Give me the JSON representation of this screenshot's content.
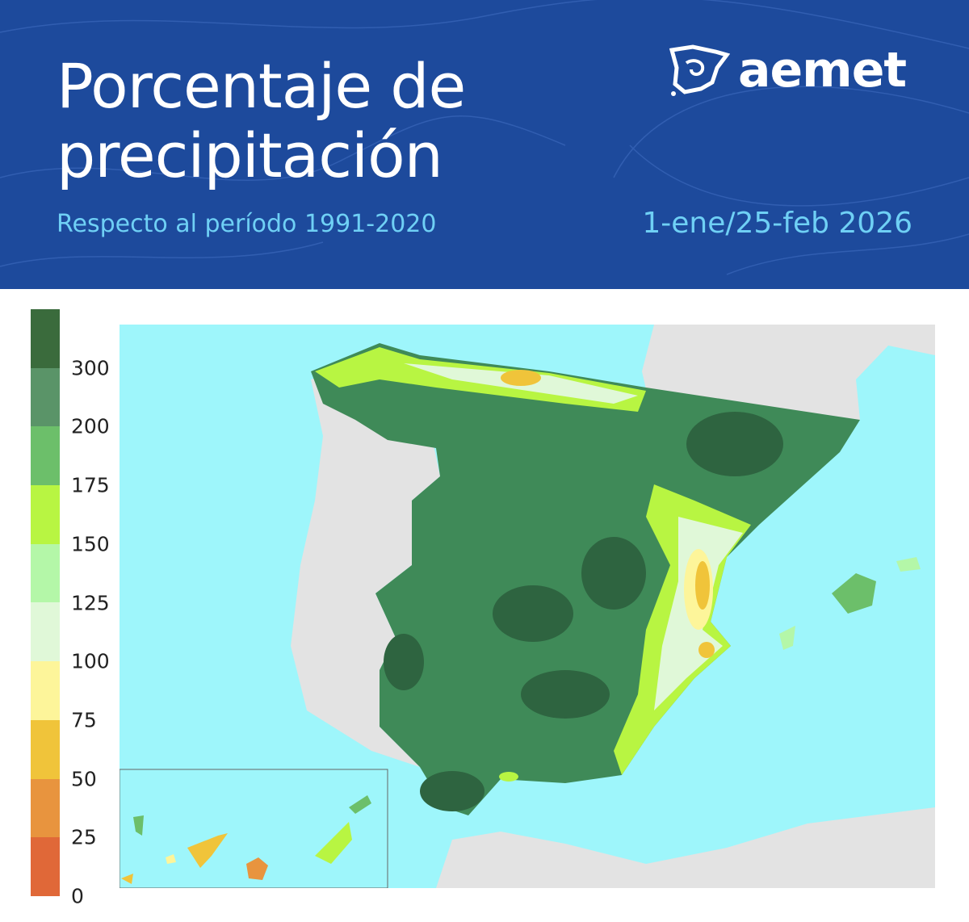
{
  "header": {
    "title_line1": "Porcentaje de",
    "title_line2": "precipitación",
    "subtitle": "Respecto al período 1991-2020",
    "date_range": "1-ene/25-feb 2026",
    "logo_text": "aemet",
    "background_color": "#1d4a9c",
    "accent_color": "#6fd0f5"
  },
  "legend": {
    "colors": [
      "#3a6b3c",
      "#5a9468",
      "#6cbf6a",
      "#b8f542",
      "#b4f7a8",
      "#e0f8d8",
      "#fdf59a",
      "#f0c43a",
      "#e8943e",
      "#e06838"
    ],
    "labels": [
      "300",
      "200",
      "175",
      "150",
      "125",
      "100",
      "75",
      "50",
      "25",
      "0"
    ]
  },
  "map": {
    "sea_color": "#9ef6fb",
    "land_color": "#e3e3e3",
    "region": "España"
  }
}
